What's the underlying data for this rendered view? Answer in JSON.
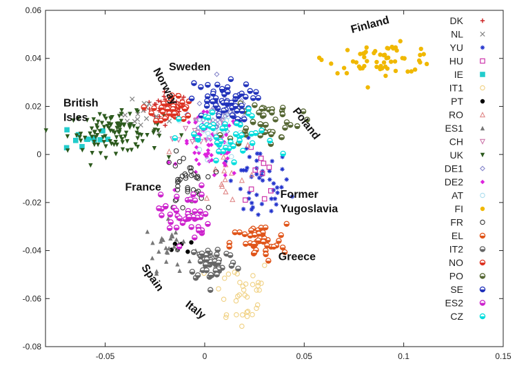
{
  "chart_data": {
    "type": "scatter",
    "title": "",
    "xlabel": "",
    "ylabel": "",
    "xlim": [
      -0.08,
      0.15
    ],
    "ylim": [
      -0.08,
      0.06
    ],
    "xticks": [
      "-0.05",
      "0",
      "0.05",
      "0.1",
      "0.15"
    ],
    "yticks": [
      "0.06",
      "0.04",
      "0.02",
      "0",
      "-0.02",
      "-0.04",
      "-0.06",
      "-0.08"
    ],
    "grid": false,
    "legend_position": "right",
    "series": [
      {
        "name": "DK",
        "color": "#cc2222",
        "marker": "plus",
        "cx": -0.018,
        "cy": 0.02,
        "sx": 0.006,
        "sy": 0.003,
        "n": 35
      },
      {
        "name": "NL",
        "color": "#888888",
        "marker": "cross",
        "cx": -0.028,
        "cy": 0.017,
        "sx": 0.007,
        "sy": 0.004,
        "n": 18
      },
      {
        "name": "YU",
        "color": "#2233cc",
        "marker": "star",
        "cx": 0.027,
        "cy": -0.013,
        "sx": 0.008,
        "sy": 0.008,
        "n": 45
      },
      {
        "name": "HU",
        "color": "#cc33aa",
        "marker": "square-open",
        "cx": 0.028,
        "cy": -0.01,
        "sx": 0.004,
        "sy": 0.006,
        "n": 10
      },
      {
        "name": "IE",
        "color": "#22cccc",
        "marker": "square-filled",
        "cx": -0.06,
        "cy": 0.007,
        "sx": 0.006,
        "sy": 0.003,
        "n": 12
      },
      {
        "name": "IT1",
        "color": "#f0d080",
        "marker": "circle-open",
        "cx": 0.018,
        "cy": -0.058,
        "sx": 0.008,
        "sy": 0.008,
        "n": 35
      },
      {
        "name": "PT",
        "color": "#000000",
        "marker": "circle-filled",
        "cx": -0.008,
        "cy": -0.038,
        "sx": 0.004,
        "sy": 0.002,
        "n": 6
      },
      {
        "name": "RO",
        "color": "#e08888",
        "marker": "triangle-open",
        "cx": 0.01,
        "cy": -0.008,
        "sx": 0.008,
        "sy": 0.008,
        "n": 15
      },
      {
        "name": "ES1",
        "color": "#777777",
        "marker": "triangle-filled",
        "cx": -0.018,
        "cy": -0.038,
        "sx": 0.006,
        "sy": 0.005,
        "n": 30
      },
      {
        "name": "CH",
        "color": "#cc77aa",
        "marker": "triangle-down",
        "cx": -0.004,
        "cy": 0.01,
        "sx": 0.006,
        "sy": 0.005,
        "n": 15
      },
      {
        "name": "UK",
        "color": "#2d5a1e",
        "marker": "triangle-down-filled",
        "cx": -0.045,
        "cy": 0.009,
        "sx": 0.012,
        "sy": 0.004,
        "n": 110
      },
      {
        "name": "DE1",
        "color": "#8888cc",
        "marker": "diamond-open",
        "cx": 0.01,
        "cy": 0.017,
        "sx": 0.009,
        "sy": 0.005,
        "n": 45
      },
      {
        "name": "DE2",
        "color": "#dd22dd",
        "marker": "diamond-filled",
        "cx": 0.003,
        "cy": 0.003,
        "sx": 0.008,
        "sy": 0.007,
        "n": 70
      },
      {
        "name": "AT",
        "color": "#aaddee",
        "marker": "circle-open",
        "cx": 0.01,
        "cy": 0.008,
        "sx": 0.008,
        "sy": 0.006,
        "n": 25
      },
      {
        "name": "FI",
        "color": "#f0b800",
        "marker": "circle-filled",
        "cx": 0.09,
        "cy": 0.04,
        "sx": 0.014,
        "sy": 0.003,
        "n": 60
      },
      {
        "name": "FR",
        "color": "#333333",
        "marker": "circle-open",
        "cx": -0.01,
        "cy": -0.012,
        "sx": 0.005,
        "sy": 0.006,
        "n": 40
      },
      {
        "name": "EL",
        "color": "#e0551a",
        "marker": "circle-half",
        "cx": 0.027,
        "cy": -0.037,
        "sx": 0.007,
        "sy": 0.004,
        "n": 45
      },
      {
        "name": "IT2",
        "color": "#666666",
        "marker": "circle-half",
        "cx": 0.004,
        "cy": -0.045,
        "sx": 0.006,
        "sy": 0.004,
        "n": 50
      },
      {
        "name": "NO",
        "color": "#dd3322",
        "marker": "circle-half",
        "cx": -0.016,
        "cy": 0.019,
        "sx": 0.005,
        "sy": 0.003,
        "n": 40
      },
      {
        "name": "PO",
        "color": "#556633",
        "marker": "circle-half",
        "cx": 0.03,
        "cy": 0.014,
        "sx": 0.009,
        "sy": 0.005,
        "n": 45
      },
      {
        "name": "SE",
        "color": "#2233bb",
        "marker": "circle-half",
        "cx": 0.008,
        "cy": 0.022,
        "sx": 0.008,
        "sy": 0.004,
        "n": 55
      },
      {
        "name": "ES2",
        "color": "#cc22cc",
        "marker": "circle-half",
        "cx": -0.01,
        "cy": -0.025,
        "sx": 0.006,
        "sy": 0.006,
        "n": 45
      },
      {
        "name": "CZ",
        "color": "#00dddd",
        "marker": "circle-half",
        "cx": 0.012,
        "cy": 0.006,
        "sx": 0.012,
        "sy": 0.006,
        "n": 45
      }
    ],
    "annotations": [
      {
        "text": "Finland",
        "x": 0.074,
        "y": 0.0505,
        "rotate": -15
      },
      {
        "text": "Norway",
        "x": -0.026,
        "y": 0.035,
        "rotate": 62
      },
      {
        "text": "Sweden",
        "x": -0.018,
        "y": 0.035,
        "rotate": 0
      },
      {
        "text": "British",
        "x": -0.071,
        "y": 0.02,
        "rotate": 0
      },
      {
        "text": "Isles",
        "x": -0.071,
        "y": 0.014,
        "rotate": 0
      },
      {
        "text": "Poland",
        "x": 0.044,
        "y": 0.018,
        "rotate": 52
      },
      {
        "text": "France",
        "x": -0.04,
        "y": -0.015,
        "rotate": 0
      },
      {
        "text": "Former",
        "x": 0.038,
        "y": -0.018,
        "rotate": 0
      },
      {
        "text": "Yugoslavia",
        "x": 0.038,
        "y": -0.024,
        "rotate": 0
      },
      {
        "text": "Spain",
        "x": -0.032,
        "y": -0.047,
        "rotate": 55
      },
      {
        "text": "Greece",
        "x": 0.037,
        "y": -0.044,
        "rotate": 0
      },
      {
        "text": "Italy",
        "x": -0.01,
        "y": -0.063,
        "rotate": 38
      }
    ]
  }
}
